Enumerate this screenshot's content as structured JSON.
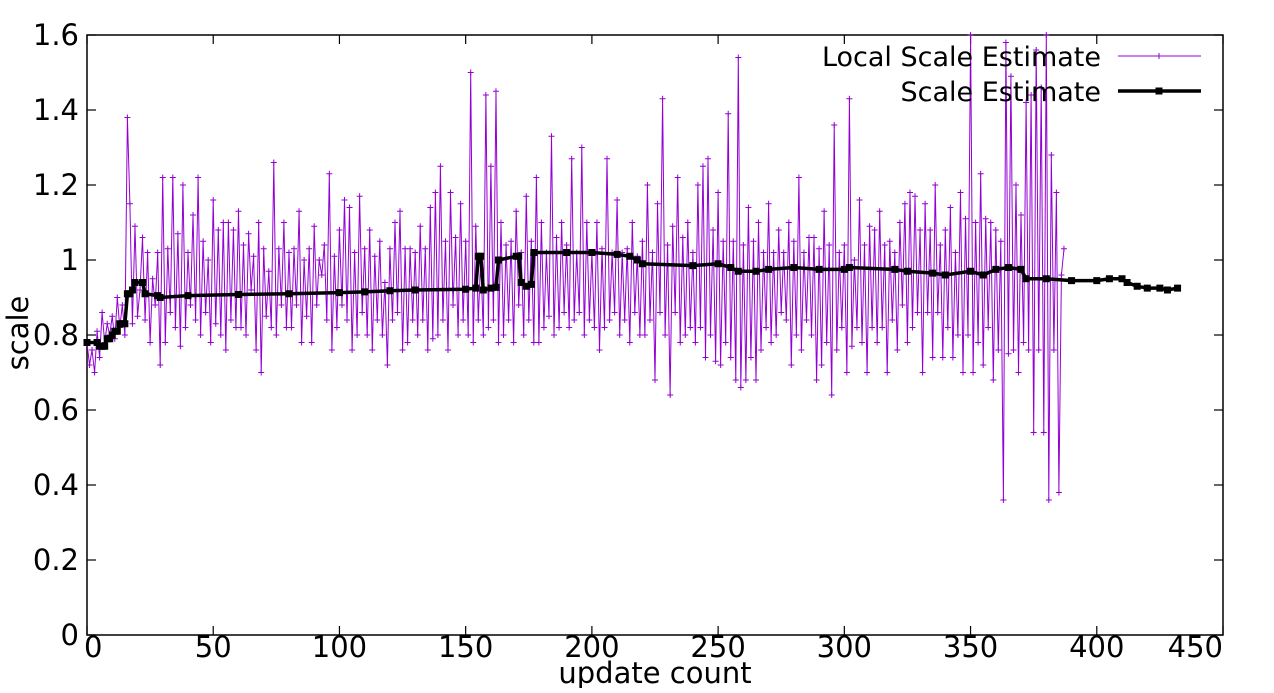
{
  "chart_data": {
    "type": "line",
    "title": "",
    "xlabel": "update count",
    "ylabel": "scale",
    "xlim": [
      0,
      450
    ],
    "ylim": [
      0,
      1.6
    ],
    "xticks": [
      0,
      50,
      100,
      150,
      200,
      250,
      300,
      350,
      400,
      450
    ],
    "yticks": [
      0,
      0.2,
      0.4,
      0.6,
      0.8,
      1,
      1.2,
      1.4,
      1.6
    ],
    "xtick_labels": [
      "0",
      "50",
      "100",
      "150",
      "200",
      "250",
      "300",
      "350",
      "400",
      "450"
    ],
    "ytick_labels": [
      "0",
      "0.2",
      "0.4",
      "0.6",
      "0.8",
      "1",
      "1.2",
      "1.4",
      "1.6"
    ],
    "grid": false,
    "legend_position": "top-right",
    "series": [
      {
        "name": "Local Scale Estimate",
        "color": "#9400D3",
        "marker": "plus",
        "step": 1,
        "values": [
          0.78,
          0.72,
          0.76,
          0.7,
          0.81,
          0.74,
          0.86,
          0.78,
          0.83,
          0.8,
          0.85,
          0.79,
          0.9,
          0.82,
          0.88,
          0.8,
          1.38,
          1.15,
          0.83,
          1.09,
          0.85,
          0.92,
          1.06,
          0.84,
          1.02,
          0.78,
          0.95,
          0.88,
          1.02,
          0.72,
          1.22,
          0.78,
          1.03,
          0.86,
          1.22,
          0.82,
          1.07,
          0.77,
          1.2,
          0.82,
          1.02,
          0.88,
          1.12,
          0.84,
          1.22,
          0.8,
          1.05,
          0.86,
          1.0,
          0.78,
          1.16,
          0.83,
          1.08,
          0.8,
          1.1,
          0.76,
          1.1,
          0.84,
          1.08,
          0.82,
          1.13,
          0.82,
          1.04,
          0.8,
          1.07,
          0.92,
          1.01,
          0.76,
          1.1,
          0.7,
          1.03,
          0.85,
          0.97,
          0.82,
          1.26,
          0.8,
          1.03,
          0.88,
          1.1,
          0.82,
          1.02,
          0.82,
          1.03,
          0.88,
          1.13,
          0.78,
          1.0,
          0.85,
          1.03,
          0.78,
          1.09,
          0.88,
          1.0,
          0.96,
          1.04,
          0.84,
          1.23,
          0.76,
          1.01,
          0.82,
          1.08,
          0.88,
          1.16,
          0.84,
          1.14,
          0.76,
          1.02,
          0.8,
          1.17,
          0.86,
          1.03,
          0.8,
          1.08,
          0.76,
          1.01,
          0.84,
          1.05,
          0.8,
          0.94,
          0.72,
          1.03,
          0.84,
          1.1,
          0.86,
          1.13,
          0.76,
          1.03,
          0.78,
          1.03,
          0.84,
          1.02,
          0.8,
          1.09,
          0.84,
          1.03,
          0.76,
          1.14,
          0.79,
          1.18,
          0.8,
          1.25,
          0.84,
          1.05,
          0.76,
          1.18,
          0.88,
          1.06,
          0.8,
          1.15,
          0.84,
          1.05,
          0.8,
          1.5,
          0.78,
          1.09,
          0.84,
          1.01,
          0.8,
          1.44,
          0.82,
          1.25,
          0.84,
          1.45,
          0.78,
          1.1,
          0.8,
          1.04,
          0.84,
          1.05,
          0.78,
          1.13,
          0.88,
          1.02,
          0.8,
          1.17,
          0.84,
          1.05,
          0.78,
          1.22,
          0.78,
          1.1,
          0.82,
          1.02,
          0.85,
          1.33,
          0.8,
          1.06,
          0.82,
          1.1,
          0.86,
          1.04,
          0.82,
          1.27,
          0.84,
          1.02,
          0.86,
          1.3,
          0.8,
          1.1,
          0.84,
          1.02,
          0.82,
          1.1,
          0.76,
          1.03,
          0.82,
          1.27,
          0.84,
          1.02,
          0.86,
          1.16,
          0.8,
          1.02,
          0.84,
          1.03,
          0.78,
          1.1,
          0.86,
          1.01,
          0.8,
          1.05,
          0.8,
          1.2,
          0.84,
          1.02,
          0.68,
          1.15,
          0.86,
          1.43,
          0.8,
          1.04,
          0.64,
          1.09,
          0.86,
          1.22,
          0.78,
          1.06,
          0.8,
          1.1,
          0.82,
          1.02,
          0.78,
          1.2,
          0.82,
          1.25,
          0.74,
          1.27,
          0.8,
          1.08,
          0.73,
          1.18,
          0.72,
          1.05,
          0.78,
          1.39,
          0.74,
          1.05,
          0.68,
          1.54,
          0.66,
          1.04,
          0.68,
          1.14,
          0.74,
          1.05,
          0.68,
          1.1,
          0.76,
          1.02,
          0.82,
          1.15,
          0.78,
          1.02,
          0.8,
          1.08,
          0.86,
          1.02,
          0.84,
          1.1,
          0.72,
          1.05,
          0.8,
          1.22,
          0.76,
          1.02,
          0.84,
          1.06,
          0.8,
          1.06,
          0.68,
          1.03,
          0.72,
          1.13,
          0.78,
          1.04,
          0.64,
          1.36,
          0.76,
          1.02,
          0.82,
          1.04,
          0.7,
          1.43,
          0.77,
          1.0,
          0.82,
          1.16,
          0.78,
          1.04,
          0.7,
          1.09,
          0.82,
          1.08,
          0.78,
          1.13,
          0.82,
          1.04,
          0.7,
          1.05,
          0.84,
          1.02,
          0.76,
          1.1,
          0.88,
          1.15,
          0.78,
          1.18,
          0.82,
          1.17,
          0.86,
          1.08,
          0.7,
          1.15,
          0.86,
          1.08,
          0.74,
          1.2,
          0.86,
          1.04,
          0.74,
          1.08,
          0.82,
          1.14,
          0.74,
          1.02,
          0.8,
          1.18,
          0.7,
          1.11,
          0.8,
          1.6,
          0.7,
          1.1,
          0.78,
          1.23,
          0.72,
          1.11,
          0.82,
          1.1,
          0.68,
          1.08,
          0.76,
          1.05,
          0.36,
          1.58,
          0.75,
          1.49,
          0.76,
          1.2,
          0.7,
          1.12,
          0.78,
          1.42,
          0.76,
          1.44,
          0.54,
          1.56,
          0.76,
          1.46,
          0.54,
          1.6,
          0.36,
          1.28,
          0.76,
          1.18,
          0.38,
          0.96,
          1.03
        ]
      },
      {
        "name": "Scale Estimate",
        "color": "#000000",
        "marker": "square",
        "points": [
          [
            0,
            0.78
          ],
          [
            4,
            0.78
          ],
          [
            5,
            0.77
          ],
          [
            6,
            0.77
          ],
          [
            7,
            0.77
          ],
          [
            8,
            0.79
          ],
          [
            9,
            0.79
          ],
          [
            10,
            0.8
          ],
          [
            11,
            0.81
          ],
          [
            12,
            0.81
          ],
          [
            13,
            0.83
          ],
          [
            14,
            0.83
          ],
          [
            15,
            0.83
          ],
          [
            16,
            0.91
          ],
          [
            17,
            0.91
          ],
          [
            18,
            0.92
          ],
          [
            19,
            0.94
          ],
          [
            22,
            0.94
          ],
          [
            23,
            0.91
          ],
          [
            28,
            0.905
          ],
          [
            29,
            0.9
          ],
          [
            40,
            0.905
          ],
          [
            60,
            0.908
          ],
          [
            80,
            0.91
          ],
          [
            100,
            0.913
          ],
          [
            110,
            0.915
          ],
          [
            120,
            0.918
          ],
          [
            130,
            0.92
          ],
          [
            150,
            0.922
          ],
          [
            154,
            0.925
          ],
          [
            155,
            1.01
          ],
          [
            156,
            1.01
          ],
          [
            157,
            0.92
          ],
          [
            160,
            0.925
          ],
          [
            162,
            0.927
          ],
          [
            163,
            1.0
          ],
          [
            170,
            1.01
          ],
          [
            171,
            1.01
          ],
          [
            172,
            0.94
          ],
          [
            174,
            0.93
          ],
          [
            176,
            0.935
          ],
          [
            177,
            1.02
          ],
          [
            190,
            1.02
          ],
          [
            200,
            1.02
          ],
          [
            210,
            1.015
          ],
          [
            215,
            1.01
          ],
          [
            218,
            1.0
          ],
          [
            220,
            0.99
          ],
          [
            240,
            0.985
          ],
          [
            250,
            0.99
          ],
          [
            255,
            0.98
          ],
          [
            258,
            0.97
          ],
          [
            265,
            0.97
          ],
          [
            270,
            0.975
          ],
          [
            280,
            0.98
          ],
          [
            290,
            0.975
          ],
          [
            300,
            0.975
          ],
          [
            302,
            0.98
          ],
          [
            320,
            0.975
          ],
          [
            325,
            0.97
          ],
          [
            335,
            0.965
          ],
          [
            340,
            0.96
          ],
          [
            350,
            0.97
          ],
          [
            355,
            0.96
          ],
          [
            360,
            0.975
          ],
          [
            365,
            0.98
          ],
          [
            370,
            0.975
          ],
          [
            372,
            0.95
          ],
          [
            380,
            0.95
          ],
          [
            390,
            0.945
          ],
          [
            400,
            0.945
          ],
          [
            405,
            0.95
          ],
          [
            410,
            0.95
          ],
          [
            412,
            0.94
          ],
          [
            416,
            0.93
          ],
          [
            420,
            0.925
          ],
          [
            425,
            0.925
          ],
          [
            428,
            0.92
          ],
          [
            432,
            0.925
          ]
        ]
      }
    ]
  }
}
